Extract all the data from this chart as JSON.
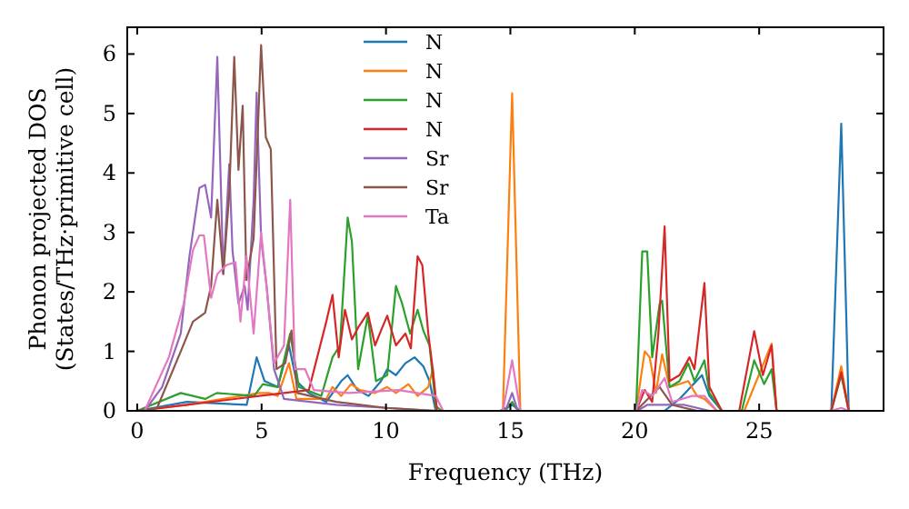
{
  "chart_data": {
    "type": "line",
    "xlabel": "Frequency (THz)",
    "ylabel": "Phonon projected DOS\n(States/THz·primitive cell)",
    "xlim": [
      -0.4,
      30
    ],
    "ylim": [
      0,
      6.45
    ],
    "xticks": [
      0,
      5,
      10,
      15,
      20,
      25
    ],
    "yticks": [
      0,
      1,
      2,
      3,
      4,
      5,
      6
    ],
    "legend": "top",
    "grid": false,
    "series": [
      {
        "name": "N",
        "color": "#1f77b4",
        "x": [
          0,
          2,
          4.4,
          4.8,
          5.12,
          5.65,
          6.1,
          6.4,
          6.9,
          7.6,
          8.2,
          8.46,
          8.85,
          9.3,
          9.8,
          10.05,
          10.4,
          10.78,
          11.15,
          11.5,
          11.75,
          12,
          14.6,
          15.07,
          15.4,
          21.2,
          21.8,
          22.7,
          23,
          23.5,
          27.9,
          28.3,
          28.6
        ],
        "values": [
          0,
          0.15,
          0.1,
          0.9,
          0.5,
          0.4,
          1.1,
          0.5,
          0.3,
          0.15,
          0.5,
          0.6,
          0.35,
          0.25,
          0.5,
          0.7,
          0.6,
          0.8,
          0.9,
          0.75,
          0.5,
          0,
          0,
          0.1,
          0,
          0,
          0.2,
          0.6,
          0.25,
          0,
          0,
          4.83,
          0
        ]
      },
      {
        "name": "N",
        "color": "#ff7f0e",
        "x": [
          0,
          2,
          4.9,
          5.3,
          5.65,
          6.1,
          6.4,
          7.6,
          7.85,
          8.2,
          8.6,
          8.95,
          9.56,
          10.05,
          10.4,
          10.9,
          11.27,
          11.7,
          11.88,
          12.05,
          14.7,
          15.07,
          15.4,
          20.05,
          20.4,
          20.6,
          20.85,
          21.1,
          21.4,
          21.8,
          22.15,
          22.5,
          22.8,
          23.3,
          24.4,
          25.5,
          25.7,
          27.9,
          28.3,
          28.6
        ],
        "values": [
          0,
          0.1,
          0.3,
          0.3,
          0.25,
          0.8,
          0.2,
          0.2,
          0.4,
          0.25,
          0.45,
          0.35,
          0.3,
          0.4,
          0.3,
          0.45,
          0.25,
          0.4,
          0.7,
          0,
          0,
          5.34,
          0,
          0,
          1.0,
          0.9,
          0.3,
          0.95,
          0.4,
          0.45,
          0.5,
          0.25,
          0.2,
          0,
          0,
          1.13,
          0,
          0,
          0.75,
          0
        ]
      },
      {
        "name": "N",
        "color": "#2ca02c",
        "x": [
          0,
          1.75,
          2.73,
          3.2,
          4.7,
          5.05,
          5.65,
          6.15,
          6.5,
          7.4,
          7.85,
          8.15,
          8.46,
          8.63,
          8.88,
          9.27,
          9.6,
          10.05,
          10.4,
          10.65,
          10.97,
          11.27,
          11.5,
          11.75,
          12,
          12.25,
          14.8,
          15.07,
          15.3,
          20.05,
          20.3,
          20.5,
          20.7,
          21.0,
          21.1,
          21.4,
          21.8,
          22.15,
          22.4,
          22.8,
          23.0,
          23.5,
          24.3,
          24.8,
          25.2,
          25.5,
          25.7,
          27.9,
          28.3,
          28.6
        ],
        "values": [
          0,
          0.3,
          0.2,
          0.3,
          0.25,
          0.45,
          0.4,
          1.3,
          0.4,
          0.25,
          0.9,
          1.1,
          3.25,
          2.85,
          0.7,
          1.6,
          0.5,
          0.6,
          2.1,
          1.8,
          1.3,
          1.7,
          1.35,
          1.1,
          0.08,
          0,
          0,
          0.15,
          0,
          0,
          2.68,
          2.68,
          0.9,
          1.8,
          1.85,
          0.4,
          0.5,
          0.8,
          0.5,
          0.85,
          0.3,
          0,
          0,
          0.85,
          0.45,
          0.7,
          0,
          0,
          0.6,
          0
        ]
      },
      {
        "name": "N",
        "color": "#d62728",
        "x": [
          0,
          2,
          4.9,
          6.9,
          7.6,
          7.85,
          8.1,
          8.35,
          8.63,
          8.88,
          9.27,
          9.56,
          9.8,
          10.05,
          10.4,
          10.78,
          11.0,
          11.27,
          11.46,
          11.7,
          11.88,
          12.05,
          20.05,
          20.4,
          20.7,
          20.95,
          21.2,
          21.4,
          21.8,
          22.2,
          22.4,
          22.8,
          23.0,
          23.5,
          24.2,
          24.8,
          25.15,
          25.5,
          25.7,
          27.9,
          28.3,
          28.6
        ],
        "values": [
          0,
          0.1,
          0.25,
          0.35,
          1.5,
          1.95,
          0.9,
          1.7,
          1.2,
          1.4,
          1.65,
          1.1,
          1.35,
          1.6,
          1.1,
          1.3,
          1.05,
          2.6,
          2.45,
          1.3,
          0.7,
          0,
          0,
          0.35,
          0.15,
          1.3,
          3.1,
          0.5,
          0.6,
          0.9,
          0.7,
          2.15,
          0.4,
          0,
          0,
          1.34,
          0.6,
          1.1,
          0,
          0,
          0.65,
          0
        ]
      },
      {
        "name": "Sr",
        "color": "#9467bd",
        "x": [
          0,
          0.3,
          1.0,
          1.75,
          2.1,
          2.5,
          2.73,
          2.97,
          3.22,
          3.46,
          3.7,
          3.83,
          4.07,
          4.32,
          4.44,
          4.68,
          4.8,
          4.98,
          5.2,
          5.5,
          5.9,
          8,
          10,
          12,
          14.8,
          15.07,
          15.3,
          20.1,
          20.5,
          21.2,
          22,
          23
        ],
        "values": [
          0,
          0,
          0.4,
          1.3,
          2.6,
          3.75,
          3.8,
          3.25,
          5.95,
          2.3,
          4.15,
          2.7,
          1.8,
          2.1,
          1.7,
          3.55,
          5.35,
          2.9,
          2.1,
          0.7,
          0.2,
          0.1,
          0.05,
          0,
          0,
          0.3,
          0,
          0,
          0.1,
          0.1,
          0.1,
          0
        ]
      },
      {
        "name": "Sr",
        "color": "#8c564b",
        "x": [
          0,
          0.8,
          1.75,
          2.24,
          2.73,
          2.97,
          3.22,
          3.46,
          3.7,
          3.9,
          4.07,
          4.24,
          4.39,
          4.68,
          4.98,
          5.17,
          5.37,
          5.6,
          5.95,
          6.2,
          6.44,
          8,
          10,
          12,
          20.05,
          21.0,
          21.5,
          22.5
        ],
        "values": [
          0,
          0.05,
          1.0,
          1.5,
          1.65,
          2.1,
          3.55,
          2.3,
          3.65,
          5.95,
          4.05,
          5.13,
          2.2,
          2.9,
          6.15,
          4.6,
          4.4,
          0.7,
          0.8,
          1.35,
          0.3,
          0.15,
          0.05,
          0,
          0,
          0.4,
          0.1,
          0
        ]
      },
      {
        "name": "Ta",
        "color": "#e377c2",
        "x": [
          0,
          0.3,
          1.27,
          1.87,
          2.24,
          2.5,
          2.68,
          2.97,
          3.22,
          3.58,
          3.95,
          4.15,
          4.39,
          4.68,
          4.98,
          5.2,
          5.5,
          5.9,
          6.15,
          6.34,
          6.75,
          7.1,
          8.5,
          10.5,
          12,
          12.3,
          14.7,
          15.07,
          15.4,
          20.05,
          20.3,
          20.7,
          21.2,
          21.5,
          22.3,
          22.8,
          23.3,
          27.9,
          28.3,
          28.6
        ],
        "values": [
          0,
          0,
          0.9,
          1.8,
          2.7,
          2.95,
          2.95,
          1.9,
          2.3,
          2.45,
          2.5,
          1.5,
          2.6,
          1.3,
          3.0,
          2.1,
          0.8,
          1.1,
          3.55,
          0.7,
          0.7,
          0.35,
          0.3,
          0.35,
          0.25,
          0,
          0,
          0.85,
          0,
          0,
          0.35,
          0.25,
          0.55,
          0.15,
          0.25,
          0.25,
          0,
          0,
          0.05,
          0
        ]
      }
    ]
  }
}
